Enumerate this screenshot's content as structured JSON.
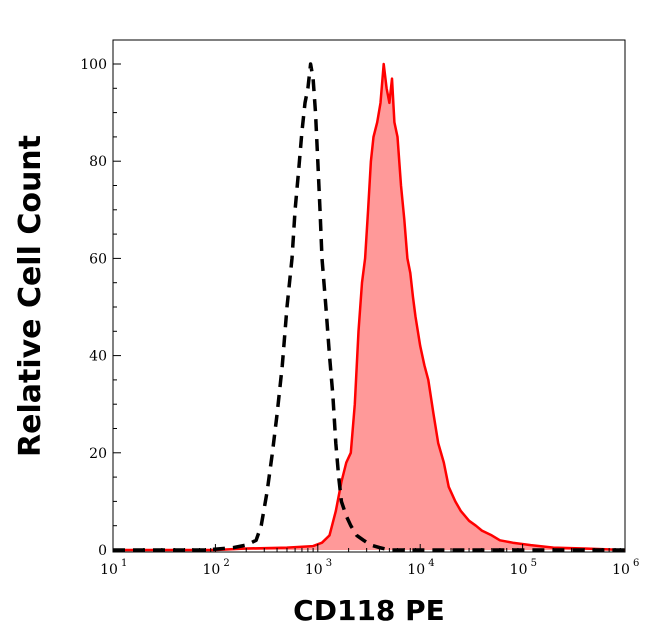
{
  "chart_data": {
    "type": "area",
    "xlabel": "CD118 PE",
    "ylabel": "Relative Cell Count",
    "xscale": "log",
    "xlim": [
      10,
      1000000
    ],
    "ylim": [
      0,
      100
    ],
    "xticks": [
      {
        "base": "10",
        "exp": "1",
        "value": 10
      },
      {
        "base": "10",
        "exp": "2",
        "value": 100
      },
      {
        "base": "10",
        "exp": "3",
        "value": 1000
      },
      {
        "base": "10",
        "exp": "4",
        "value": 10000
      },
      {
        "base": "10",
        "exp": "5",
        "value": 100000
      },
      {
        "base": "10",
        "exp": "6",
        "value": 1000000
      }
    ],
    "yticks": [
      "0",
      "20",
      "40",
      "60",
      "80",
      "100"
    ],
    "grid": false,
    "series": [
      {
        "style": "dashed",
        "color": "#000000",
        "fill": "none",
        "points": [
          [
            10,
            0
          ],
          [
            30,
            0
          ],
          [
            80,
            0
          ],
          [
            150,
            0.5
          ],
          [
            200,
            1
          ],
          [
            250,
            2
          ],
          [
            280,
            5
          ],
          [
            320,
            12
          ],
          [
            360,
            20
          ],
          [
            400,
            28
          ],
          [
            450,
            38
          ],
          [
            500,
            50
          ],
          [
            560,
            60
          ],
          [
            600,
            70
          ],
          [
            650,
            78
          ],
          [
            700,
            86
          ],
          [
            750,
            92
          ],
          [
            800,
            95
          ],
          [
            850,
            100
          ],
          [
            900,
            97
          ],
          [
            950,
            90
          ],
          [
            1000,
            80
          ],
          [
            1050,
            70
          ],
          [
            1100,
            60
          ],
          [
            1200,
            50
          ],
          [
            1300,
            40
          ],
          [
            1400,
            32
          ],
          [
            1500,
            22
          ],
          [
            1600,
            15
          ],
          [
            1700,
            10
          ],
          [
            1900,
            7
          ],
          [
            2100,
            5
          ],
          [
            2400,
            3
          ],
          [
            2800,
            2
          ],
          [
            3300,
            1
          ],
          [
            4000,
            0.5
          ],
          [
            5000,
            0
          ],
          [
            1000000,
            0
          ]
        ]
      },
      {
        "style": "solid",
        "color": "#ff0000",
        "fill": "#ff9999",
        "points": [
          [
            10,
            0
          ],
          [
            100,
            0
          ],
          [
            200,
            0.3
          ],
          [
            500,
            0.5
          ],
          [
            900,
            0.8
          ],
          [
            1100,
            1.5
          ],
          [
            1300,
            3
          ],
          [
            1500,
            8
          ],
          [
            1700,
            14
          ],
          [
            1900,
            18
          ],
          [
            2100,
            20
          ],
          [
            2300,
            30
          ],
          [
            2500,
            45
          ],
          [
            2700,
            55
          ],
          [
            2900,
            60
          ],
          [
            3100,
            70
          ],
          [
            3300,
            80
          ],
          [
            3500,
            85
          ],
          [
            3800,
            88
          ],
          [
            4100,
            92
          ],
          [
            4400,
            100
          ],
          [
            4700,
            95
          ],
          [
            5000,
            92
          ],
          [
            5300,
            97
          ],
          [
            5600,
            88
          ],
          [
            6000,
            85
          ],
          [
            6500,
            75
          ],
          [
            7000,
            68
          ],
          [
            7500,
            60
          ],
          [
            8000,
            57
          ],
          [
            8500,
            52
          ],
          [
            9000,
            48
          ],
          [
            10000,
            42
          ],
          [
            11000,
            38
          ],
          [
            12000,
            35
          ],
          [
            13500,
            28
          ],
          [
            15000,
            22
          ],
          [
            17000,
            18
          ],
          [
            19000,
            13
          ],
          [
            22000,
            10
          ],
          [
            25000,
            8
          ],
          [
            30000,
            6
          ],
          [
            35000,
            5
          ],
          [
            40000,
            4
          ],
          [
            50000,
            3
          ],
          [
            60000,
            2
          ],
          [
            80000,
            1.5
          ],
          [
            120000,
            1
          ],
          [
            200000,
            0.5
          ],
          [
            400000,
            0.3
          ],
          [
            1000000,
            0
          ]
        ]
      }
    ]
  }
}
